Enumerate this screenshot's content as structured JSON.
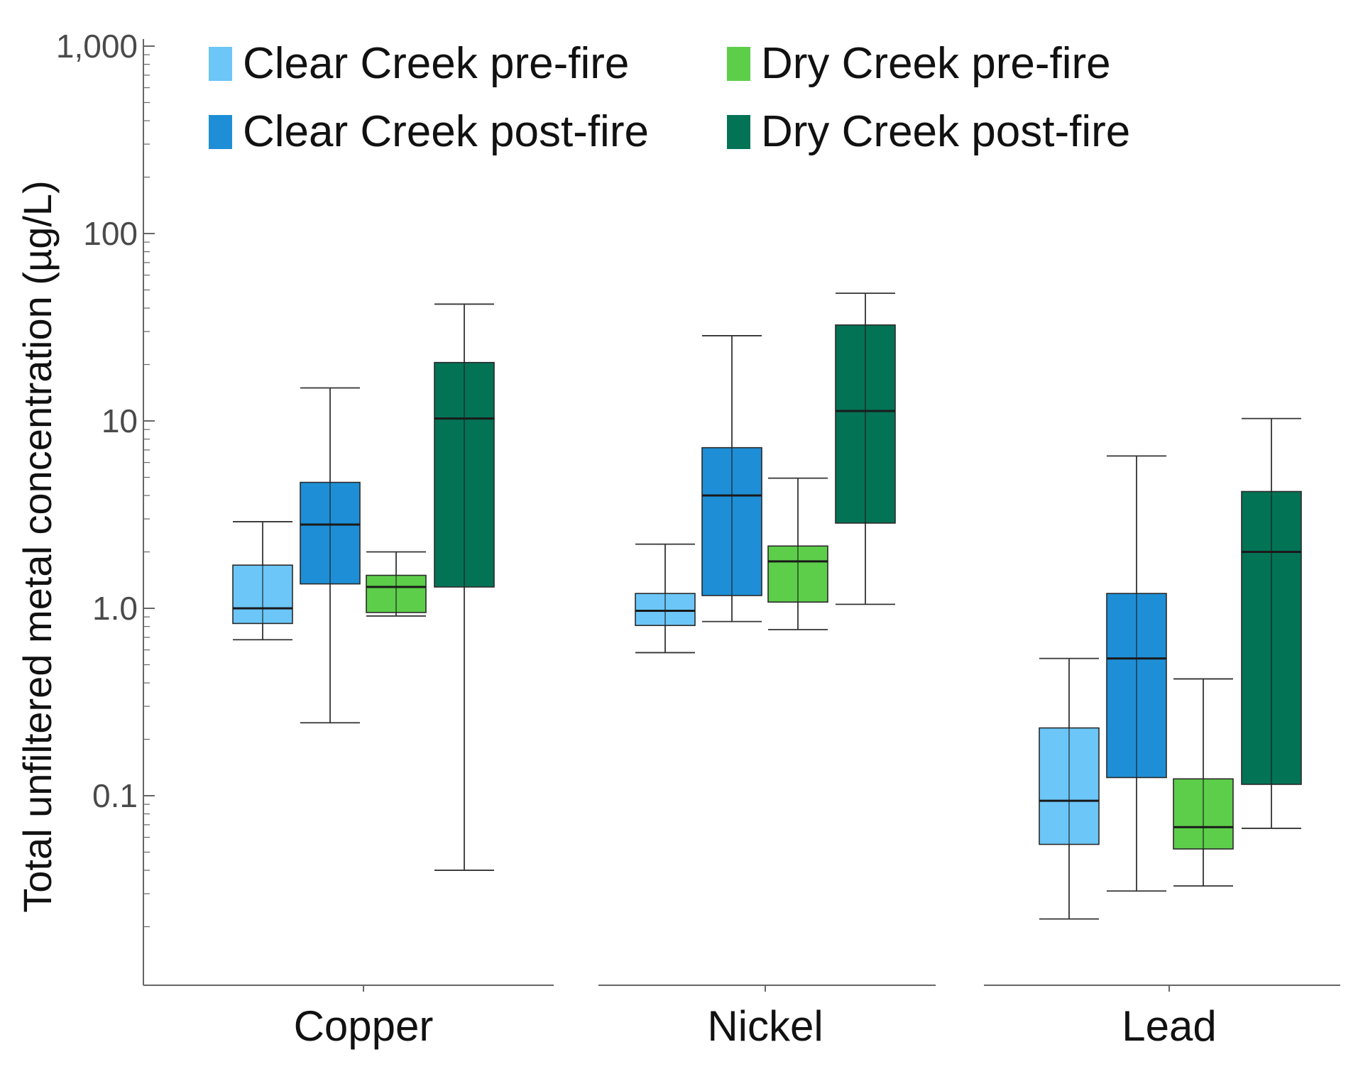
{
  "chart_data": {
    "type": "boxplot",
    "ylabel": "Total unfiltered metal concentration (µg/L)",
    "yscale": "log",
    "ylim": [
      0.01,
      1000
    ],
    "yticks": [
      {
        "value": 1000,
        "label": "1,000"
      },
      {
        "value": 100,
        "label": "100"
      },
      {
        "value": 10,
        "label": "10"
      },
      {
        "value": 1,
        "label": "1.0"
      },
      {
        "value": 0.1,
        "label": "0.1"
      }
    ],
    "categories": [
      "Copper",
      "Nickel",
      "Lead"
    ],
    "series": [
      {
        "name": "Clear Creek pre-fire",
        "color": "#6cc6f7"
      },
      {
        "name": "Clear Creek post-fire",
        "color": "#1e8fd6"
      },
      {
        "name": "Dry Creek pre-fire",
        "color": "#5dce4a"
      },
      {
        "name": "Dry Creek post-fire",
        "color": "#037356"
      }
    ],
    "boxes": [
      [
        {
          "min": 0.68,
          "q1": 0.83,
          "median": 1.0,
          "q3": 1.7,
          "max": 2.9
        },
        {
          "min": 0.245,
          "q1": 1.35,
          "median": 2.8,
          "q3": 4.7,
          "max": 15
        },
        {
          "min": 0.91,
          "q1": 0.95,
          "median": 1.3,
          "q3": 1.5,
          "max": 2.0
        },
        {
          "min": 0.04,
          "q1": 1.3,
          "median": 10.3,
          "q3": 20.5,
          "max": 42
        }
      ],
      [
        {
          "min": 0.58,
          "q1": 0.81,
          "median": 0.97,
          "q3": 1.2,
          "max": 2.2
        },
        {
          "min": 0.85,
          "q1": 1.17,
          "median": 4.0,
          "q3": 7.2,
          "max": 28.5
        },
        {
          "min": 0.77,
          "q1": 1.08,
          "median": 1.78,
          "q3": 2.15,
          "max": 4.95
        },
        {
          "min": 1.05,
          "q1": 2.85,
          "median": 11.3,
          "q3": 32.5,
          "max": 48
        }
      ],
      [
        {
          "min": 0.022,
          "q1": 0.055,
          "median": 0.094,
          "q3": 0.23,
          "max": 0.54
        },
        {
          "min": 0.031,
          "q1": 0.125,
          "median": 0.54,
          "q3": 1.2,
          "max": 6.5
        },
        {
          "min": 0.033,
          "q1": 0.052,
          "median": 0.068,
          "q3": 0.123,
          "max": 0.42
        },
        {
          "min": 0.067,
          "q1": 0.115,
          "median": 2.0,
          "q3": 4.2,
          "max": 10.3
        }
      ]
    ]
  }
}
